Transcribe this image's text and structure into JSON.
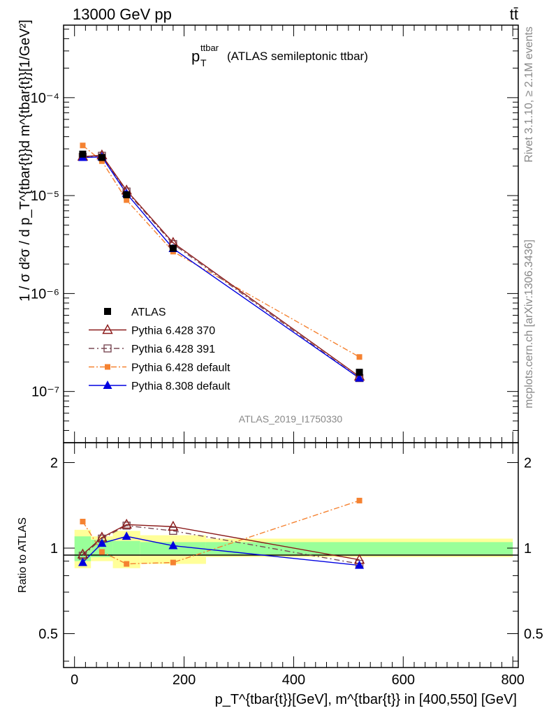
{
  "header": {
    "energy_label": "13000 GeV pp",
    "process_label": "tt̄"
  },
  "side_labels": {
    "rivet": "Rivet 3.1.10, ≥ 2.1M events",
    "mcplots": "mcplots.cern.ch [arXiv:1306.3436]"
  },
  "top_panel": {
    "title_main": "p",
    "title_sub": "T",
    "title_sup": "ttbar",
    "title_rest": "(ATLAS semileptonic ttbar)",
    "ylabel": "1 / σ d²σ / d p_T^{tbar{t}}d m^{tbar{t}}[1/GeV²]",
    "analysis_id": "ATLAS_2019_I1750330",
    "y_tick_labels": [
      "10⁻⁷",
      "10⁻⁶",
      "10⁻⁵",
      "10⁻⁴"
    ]
  },
  "bottom_panel": {
    "ylabel": "Ratio to ATLAS",
    "y_tick_labels": [
      "0.5",
      "1",
      "2"
    ],
    "x_tick_labels": [
      "0",
      "200",
      "400",
      "600",
      "800"
    ],
    "xlabel": "p_T^{tbar{t}}[GeV], m^{tbar{t}} in [400,550] [GeV]"
  },
  "legend": [
    {
      "key": "atlas",
      "label": "ATLAS"
    },
    {
      "key": "p370",
      "label": "Pythia 6.428 370"
    },
    {
      "key": "p391",
      "label": "Pythia 6.428 391"
    },
    {
      "key": "pdef",
      "label": "Pythia 6.428 default"
    },
    {
      "key": "p8",
      "label": "Pythia 8.308 default"
    }
  ],
  "chart_data": {
    "type": "scatter",
    "title": "p_T^ttbar (ATLAS semileptonic ttbar)",
    "xlabel": "p_T^{tbar{t}}[GeV], m^{tbar{t}} in [400,550] [GeV]",
    "ylabel": "1 / σ d²σ / d p_T^{tbar{t}}d m^{tbar{t}}[1/GeV²]",
    "xlim": [
      -20,
      810
    ],
    "ylim": [
      3e-08,
      0.00055
    ],
    "yscale": "log",
    "ratio_ylim": [
      0.38,
      2.35
    ],
    "ratio_yscale": "log",
    "x": [
      15,
      50,
      95,
      180,
      520
    ],
    "bins": [
      [
        0,
        30
      ],
      [
        30,
        70
      ],
      [
        70,
        120
      ],
      [
        120,
        240
      ],
      [
        240,
        800
      ]
    ],
    "colors": {
      "atlas": "#000000",
      "p370": "#8b1a1a",
      "p391": "#7a4a55",
      "pdef": "#f58231",
      "p8": "#0000e0"
    },
    "series": [
      {
        "name": "ATLAS",
        "key": "atlas",
        "values": [
          2.65e-05,
          2.45e-05,
          1.02e-05,
          2.9e-06,
          1.57e-07
        ],
        "ratio": [
          1,
          1,
          1,
          1,
          1
        ],
        "band_inner": [
          [
            0.9,
            1.1
          ],
          [
            0.93,
            1.07
          ],
          [
            0.95,
            1.06
          ],
          [
            0.95,
            1.05
          ],
          [
            0.95,
            1.05
          ]
        ],
        "band_outer": [
          [
            0.85,
            1.16
          ],
          [
            0.9,
            1.1
          ],
          [
            0.85,
            1.15
          ],
          [
            0.88,
            1.11
          ],
          [
            0.93,
            1.08
          ]
        ]
      },
      {
        "name": "Pythia 6.428 370",
        "key": "p370",
        "values": [
          2.5e-05,
          2.58e-05,
          1.13e-05,
          3.3e-06,
          1.42e-07
        ],
        "ratio": [
          0.95,
          1.09,
          1.21,
          1.19,
          0.91
        ]
      },
      {
        "name": "Pythia 6.428 391",
        "key": "p391",
        "values": [
          2.48e-05,
          2.55e-05,
          1.1e-05,
          3.2e-06,
          1.37e-07
        ],
        "ratio": [
          0.94,
          1.08,
          1.2,
          1.15,
          0.88
        ]
      },
      {
        "name": "Pythia 6.428 default",
        "key": "pdef",
        "values": [
          3.25e-05,
          2.25e-05,
          9e-06,
          2.68e-06,
          2.25e-07
        ],
        "ratio": [
          1.24,
          0.97,
          0.88,
          0.89,
          1.47
        ]
      },
      {
        "name": "Pythia 8.308 default",
        "key": "p8",
        "values": [
          2.45e-05,
          2.48e-05,
          1.05e-05,
          2.88e-06,
          1.37e-07
        ],
        "ratio": [
          0.89,
          1.04,
          1.1,
          1.02,
          0.87
        ]
      }
    ],
    "grid": false,
    "legend_position": "lower-left"
  }
}
